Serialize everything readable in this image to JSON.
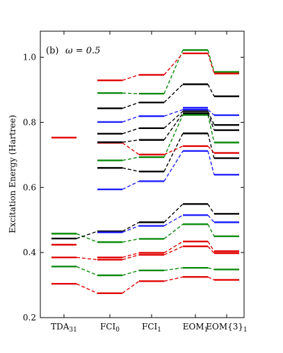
{
  "chart_data": {
    "type": "line",
    "title": "",
    "panel_label": "(b)",
    "panel_param": "ω = 0.5",
    "xlabel": "",
    "ylabel": "Excitation Energy (Hartree)",
    "ylim": [
      0.2,
      1.08
    ],
    "yticks": [
      0.2,
      0.4,
      0.6,
      0.8,
      1.0
    ],
    "ytick_labels": [
      "0.2",
      "0.4",
      "0.6",
      "0.8",
      "1.0"
    ],
    "categories": [
      {
        "main": "TDA",
        "sub": "31"
      },
      {
        "main": "FCI",
        "sub": "0"
      },
      {
        "main": "FCI",
        "sub": "1"
      },
      {
        "main": "EOM",
        "sub": "1"
      },
      {
        "main": "EOM{3}",
        "sub": "1"
      }
    ],
    "grid": false,
    "levels": [
      {
        "color": "#e00000",
        "values": [
          0.304,
          0.275,
          0.312,
          0.325,
          0.316
        ]
      },
      {
        "color": "#0a8a0a",
        "values": [
          0.357,
          0.33,
          0.345,
          0.353,
          0.348
        ]
      },
      {
        "color": "#e00000",
        "values": [
          0.385,
          0.378,
          0.393,
          0.419,
          0.398
        ]
      },
      {
        "color": "#e00000",
        "values": [
          null,
          0.385,
          0.399,
          0.434,
          0.404
        ]
      },
      {
        "color": "#e00000",
        "values": [
          0.424,
          null,
          null,
          null,
          null
        ]
      },
      {
        "color": "#0a8a0a",
        "values": [
          0.458,
          0.432,
          0.442,
          0.487,
          0.45
        ]
      },
      {
        "color": "#000000",
        "values": [
          0.443,
          0.465,
          0.493,
          0.549,
          0.519
        ]
      },
      {
        "color": "#0a8a0a",
        "values": [
          0.458,
          null,
          null,
          null,
          null
        ]
      },
      {
        "color": "#1f1fff",
        "values": [
          null,
          0.462,
          0.482,
          0.515,
          0.493
        ]
      },
      {
        "color": "#1f1fff",
        "values": [
          null,
          0.594,
          0.619,
          0.712,
          0.639
        ]
      },
      {
        "color": "#000000",
        "values": [
          null,
          0.66,
          0.649,
          0.766,
          0.69
        ]
      },
      {
        "color": "#0a8a0a",
        "values": [
          null,
          0.683,
          0.693,
          0.823,
          0.738
        ]
      },
      {
        "color": "#e00000",
        "values": [
          null,
          0.737,
          0.701,
          0.727,
          0.706
        ]
      },
      {
        "color": "#000000",
        "values": [
          null,
          0.739,
          0.746,
          0.828,
          0.776
        ]
      },
      {
        "color": "#e00000",
        "values": [
          0.753,
          null,
          null,
          null,
          null
        ]
      },
      {
        "color": "#000000",
        "values": [
          null,
          0.765,
          0.782,
          0.834,
          0.792
        ]
      },
      {
        "color": "#1f1fff",
        "values": [
          null,
          0.801,
          0.819,
          0.839,
          0.822
        ]
      },
      {
        "color": "#000000",
        "values": [
          null,
          0.843,
          0.861,
          0.917,
          0.88
        ]
      },
      {
        "color": "#1f1fff",
        "values": [
          null,
          null,
          null,
          0.845,
          null
        ]
      },
      {
        "color": "#0a8a0a",
        "values": [
          null,
          0.89,
          0.888,
          1.022,
          0.955
        ]
      },
      {
        "color": "#e00000",
        "values": [
          null,
          0.929,
          0.946,
          1.012,
          0.95
        ]
      }
    ]
  }
}
